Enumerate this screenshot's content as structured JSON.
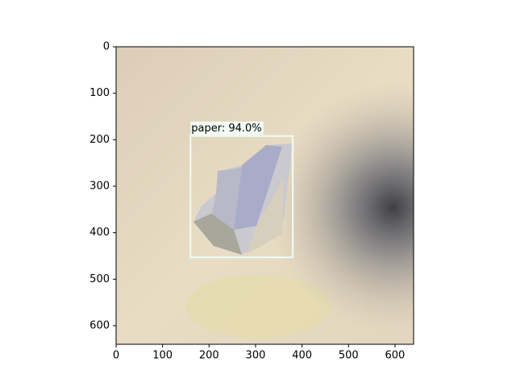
{
  "chart_data": {
    "type": "image",
    "xlim": [
      0,
      640
    ],
    "ylim": [
      640,
      0
    ],
    "xticks": [
      0,
      100,
      200,
      300,
      400,
      500,
      600
    ],
    "yticks": [
      0,
      100,
      200,
      300,
      400,
      500,
      600
    ],
    "detections": [
      {
        "label": "paper: 94.0%",
        "box": {
          "x0": 160,
          "y0": 192,
          "x1": 380,
          "y1": 453
        },
        "color": "#f2fbf6"
      }
    ]
  }
}
